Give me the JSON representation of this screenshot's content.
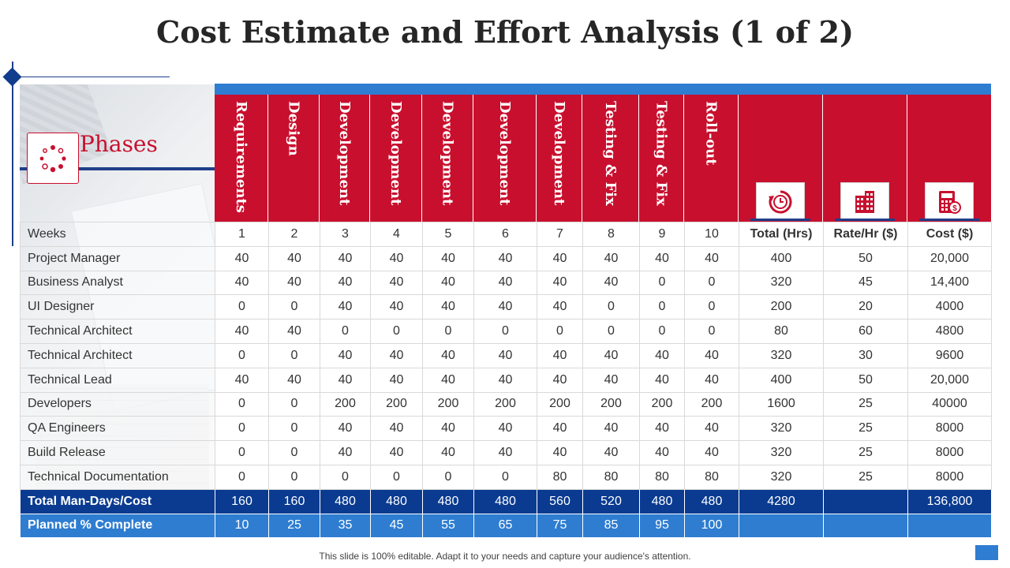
{
  "title": "Cost Estimate and Effort Analysis (1 of 2)",
  "phases_label": "Phases",
  "phase_headers": [
    "Requirements",
    "Design",
    "Development",
    "Development",
    "Development",
    "Development",
    "Development",
    "Testing & Fix",
    "Testing & Fix",
    "Roll-out"
  ],
  "icons": [
    "clock-reset-icon",
    "building-icon",
    "calculator-dollar-icon"
  ],
  "colors": {
    "header_red": "#c8102e",
    "navy": "#0a3b91",
    "blue": "#2e7dd1"
  },
  "weeks_row": {
    "label": "Weeks",
    "weeks": [
      "1",
      "2",
      "3",
      "4",
      "5",
      "6",
      "7",
      "8",
      "9",
      "10"
    ],
    "total_label": "Total (Hrs)",
    "rate_label": "Rate/Hr ($)",
    "cost_label": "Cost ($)"
  },
  "rows": [
    {
      "label": "Project Manager",
      "values": [
        "40",
        "40",
        "40",
        "40",
        "40",
        "40",
        "40",
        "40",
        "40",
        "40"
      ],
      "total": "400",
      "rate": "50",
      "cost": "20,000"
    },
    {
      "label": "Business Analyst",
      "values": [
        "40",
        "40",
        "40",
        "40",
        "40",
        "40",
        "40",
        "40",
        "0",
        "0"
      ],
      "total": "320",
      "rate": "45",
      "cost": "14,400"
    },
    {
      "label": "UI Designer",
      "values": [
        "0",
        "0",
        "40",
        "40",
        "40",
        "40",
        "40",
        "0",
        "0",
        "0"
      ],
      "total": "200",
      "rate": "20",
      "cost": "4000"
    },
    {
      "label": "Technical Architect",
      "values": [
        "40",
        "40",
        "0",
        "0",
        "0",
        "0",
        "0",
        "0",
        "0",
        "0"
      ],
      "total": "80",
      "rate": "60",
      "cost": "4800"
    },
    {
      "label": "Technical Architect",
      "values": [
        "0",
        "0",
        "40",
        "40",
        "40",
        "40",
        "40",
        "40",
        "40",
        "40"
      ],
      "total": "320",
      "rate": "30",
      "cost": "9600"
    },
    {
      "label": "Technical Lead",
      "values": [
        "40",
        "40",
        "40",
        "40",
        "40",
        "40",
        "40",
        "40",
        "40",
        "40"
      ],
      "total": "400",
      "rate": "50",
      "cost": "20,000"
    },
    {
      "label": "Developers",
      "values": [
        "0",
        "0",
        "200",
        "200",
        "200",
        "200",
        "200",
        "200",
        "200",
        "200"
      ],
      "total": "1600",
      "rate": "25",
      "cost": "40000"
    },
    {
      "label": "QA Engineers",
      "values": [
        "0",
        "0",
        "40",
        "40",
        "40",
        "40",
        "40",
        "40",
        "40",
        "40"
      ],
      "total": "320",
      "rate": "25",
      "cost": "8000"
    },
    {
      "label": "Build Release",
      "values": [
        "0",
        "0",
        "40",
        "40",
        "40",
        "40",
        "40",
        "40",
        "40",
        "40"
      ],
      "total": "320",
      "rate": "25",
      "cost": "8000"
    },
    {
      "label": "Technical Documentation",
      "values": [
        "0",
        "0",
        "0",
        "0",
        "0",
        "0",
        "80",
        "80",
        "80",
        "80"
      ],
      "total": "320",
      "rate": "25",
      "cost": "8000"
    }
  ],
  "total_row": {
    "label": "Total Man-Days/Cost",
    "values": [
      "160",
      "160",
      "480",
      "480",
      "480",
      "480",
      "560",
      "520",
      "480",
      "480"
    ],
    "total": "4280",
    "rate": "",
    "cost": "136,800"
  },
  "planned_row": {
    "label": "Planned % Complete",
    "values": [
      "10",
      "25",
      "35",
      "45",
      "55",
      "65",
      "75",
      "85",
      "95",
      "100"
    ],
    "total": "",
    "rate": "",
    "cost": ""
  },
  "footer": "This slide is 100% editable. Adapt it to your needs and capture your audience's attention."
}
